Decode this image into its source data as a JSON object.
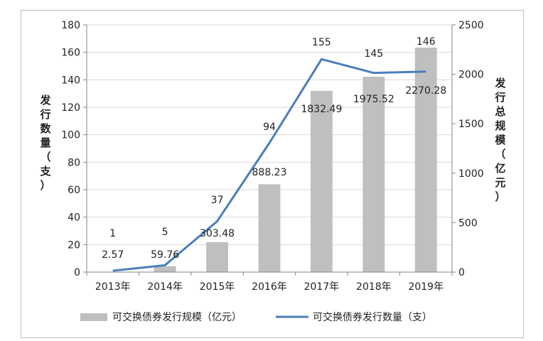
{
  "chart_data": {
    "type": "bar+line",
    "categories": [
      "2013年",
      "2014年",
      "2015年",
      "2016年",
      "2017年",
      "2018年",
      "2019年"
    ],
    "series": [
      {
        "name": "可交换债券发行规模（亿元）",
        "type": "bar",
        "axis": "right",
        "values": [
          2.57,
          59.76,
          303.48,
          888.23,
          1832.49,
          1975.52,
          2270.28
        ],
        "labels": [
          "2.57",
          "59.76",
          "303.48",
          "888.23",
          "1832.49",
          "1975.52",
          "2270.28"
        ],
        "color": "#bfbfbf"
      },
      {
        "name": "可交换债券发行数量（支）",
        "type": "line",
        "axis": "left",
        "values": [
          1,
          5,
          37,
          94,
          155,
          145,
          146
        ],
        "labels": [
          "1",
          "5",
          "37",
          "94",
          "155",
          "145",
          "146"
        ],
        "color": "#4a7ebb"
      }
    ],
    "y_left": {
      "label_chars": [
        "发",
        "行",
        "数",
        "量",
        "（",
        "支",
        "）"
      ],
      "range": [
        0,
        180
      ],
      "ticks": [
        "0",
        "20",
        "40",
        "60",
        "80",
        "100",
        "120",
        "140",
        "160",
        "180"
      ]
    },
    "y_right": {
      "label_chars": [
        "发",
        "行",
        "总",
        "规",
        "模",
        "（",
        "亿",
        "元",
        "）"
      ],
      "range": [
        0,
        2500
      ],
      "ticks": [
        "0",
        "500",
        "1000",
        "1500",
        "2000",
        "2500"
      ]
    },
    "grid": true,
    "legend": "bottom",
    "gridColor": "#d9d9d9",
    "axisColor": "#868686"
  }
}
